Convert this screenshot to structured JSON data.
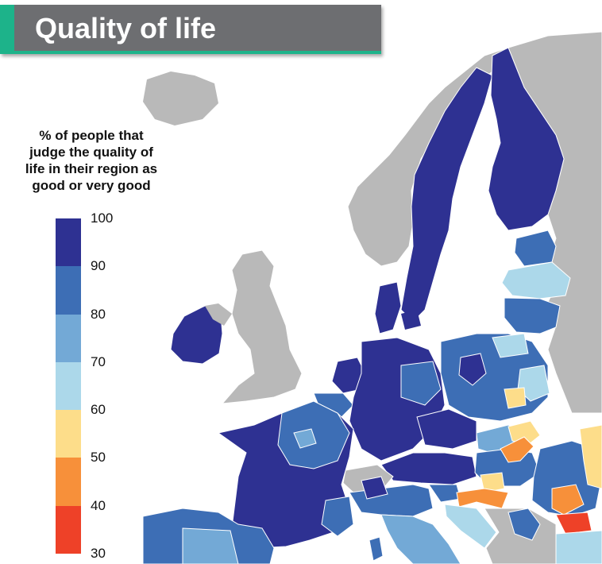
{
  "title": "Quality of life",
  "legend": {
    "title": "% of people that\njudge the quality of\nlife in their region as\ngood or very good",
    "ticks": [
      "100",
      "90",
      "80",
      "70",
      "60",
      "50",
      "40",
      "30"
    ],
    "bins": [
      {
        "range": "90-100",
        "color": "#2e3192"
      },
      {
        "range": "80-90",
        "color": "#3d6eb5"
      },
      {
        "range": "70-80",
        "color": "#73a9d6"
      },
      {
        "range": "60-70",
        "color": "#acd8ea"
      },
      {
        "range": "50-60",
        "color": "#fddd8a"
      },
      {
        "range": "40-50",
        "color": "#f7903a"
      },
      {
        "range": "30-40",
        "color": "#ee4128"
      }
    ]
  },
  "colors": {
    "no_data": "#b9b9b9",
    "sea": "#ffffff",
    "title_bar": "#6d6e71",
    "title_accent": "#1db38a"
  }
}
